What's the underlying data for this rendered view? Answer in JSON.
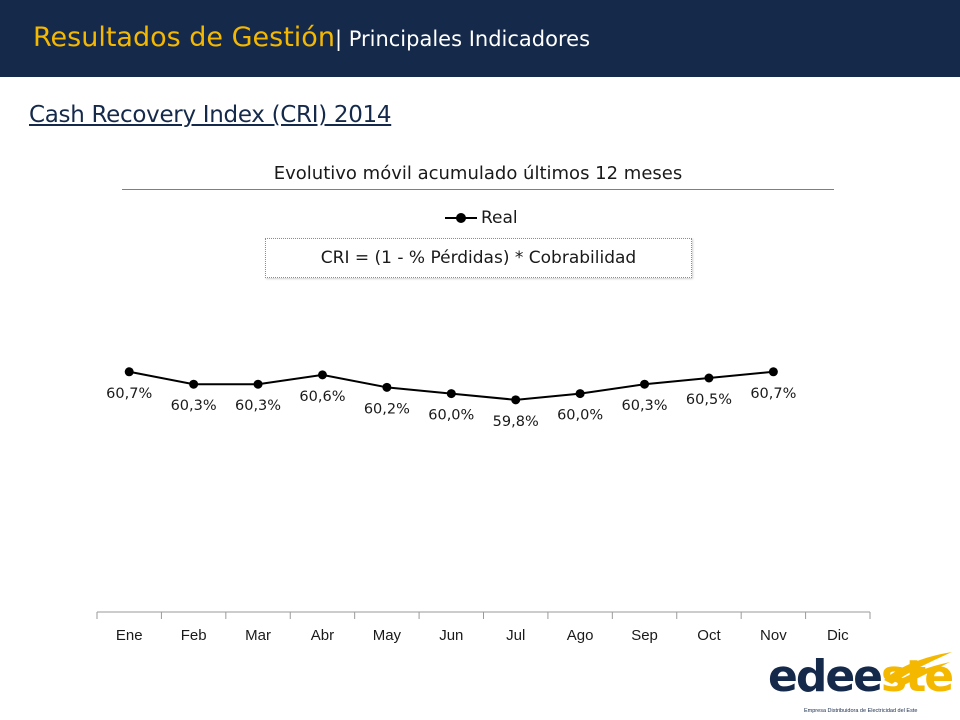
{
  "header": {
    "title": "Resultados de Gestión",
    "subtitle": "| Principales Indicadores"
  },
  "section_title": "Cash Recovery Index (CRI) 2014",
  "formula": "CRI = (1 - % Pérdidas) * Cobrabilidad",
  "logo": {
    "name_part1": "edee",
    "name_part2": "ste",
    "tagline": "Empresa Distribuidora de Electricidad del Este"
  },
  "colors": {
    "header_bg": "#15294a",
    "accent": "#f5b800",
    "series": "#000000"
  },
  "chart_data": {
    "type": "line",
    "title": "Evolutivo móvil acumulado últimos 12 meses",
    "categories": [
      "Ene",
      "Feb",
      "Mar",
      "Abr",
      "May",
      "Jun",
      "Jul",
      "Ago",
      "Sep",
      "Oct",
      "Nov",
      "Dic"
    ],
    "series": [
      {
        "name": "Real",
        "values": [
          60.7,
          60.3,
          60.3,
          60.6,
          60.2,
          60.0,
          59.8,
          60.0,
          60.3,
          60.5,
          60.7,
          null
        ],
        "labels": [
          "60,7%",
          "60,3%",
          "60,3%",
          "60,6%",
          "60,2%",
          "60,0%",
          "59,8%",
          "60,0%",
          "60,3%",
          "60,5%",
          "60,7%",
          ""
        ]
      }
    ],
    "legend": "top",
    "grid": false,
    "y_axis_visible": false,
    "ylim": [
      53.0,
      63.0
    ]
  }
}
